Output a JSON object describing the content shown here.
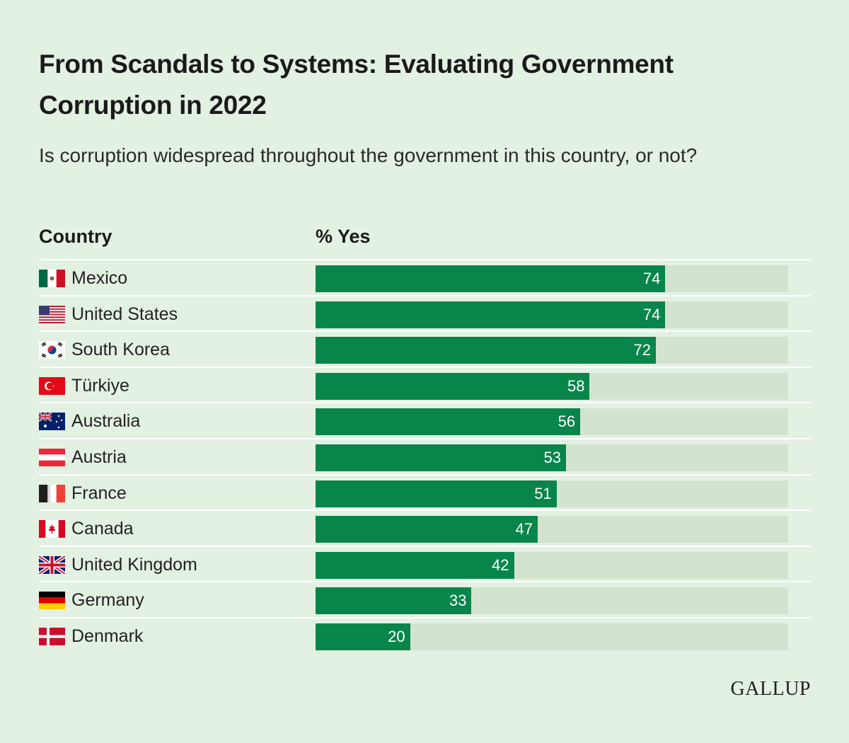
{
  "chart_data": {
    "type": "bar",
    "orientation": "horizontal",
    "title": "From Scandals to Systems: Evaluating Government Corruption in 2022",
    "subtitle": "Is corruption widespread throughout the government in this country, or not?",
    "category_header": "Country",
    "value_header": "% Yes",
    "xlim": [
      0,
      100
    ],
    "grid": false,
    "categories": [
      "Mexico",
      "United States",
      "South Korea",
      "Türkiye",
      "Australia",
      "Austria",
      "France",
      "Canada",
      "United Kingdom",
      "Germany",
      "Denmark"
    ],
    "values": [
      74,
      74,
      72,
      58,
      56,
      53,
      51,
      47,
      42,
      33,
      20
    ],
    "flags": [
      "mexico-flag-icon",
      "usa-flag-icon",
      "south-korea-flag-icon",
      "turkiye-flag-icon",
      "australia-flag-icon",
      "austria-flag-icon",
      "france-flag-icon",
      "canada-flag-icon",
      "uk-flag-icon",
      "germany-flag-icon",
      "denmark-flag-icon"
    ],
    "bar_color": "#07854b",
    "track_color": "#d3e3d0"
  },
  "brand": "GALLUP",
  "colors": {
    "background": "#e3f1e2"
  }
}
